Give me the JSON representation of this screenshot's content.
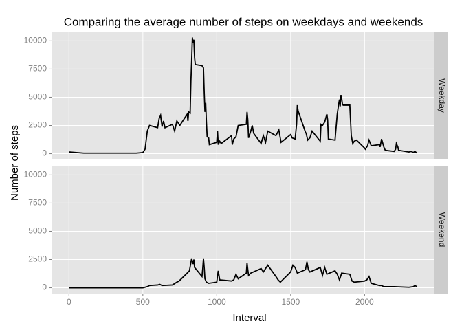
{
  "chart_data": {
    "type": "line",
    "facets": true,
    "title": "Comparing the average number of steps on weekdays and weekends",
    "xlabel": "Interval",
    "ylabel": "Number of steps",
    "xlim": [
      -117.75,
      2472.75
    ],
    "xticks": [
      0,
      500,
      1000,
      1500,
      2000
    ],
    "ylim": [
      -515,
      10815
    ],
    "yticks": [
      0,
      2500,
      5000,
      7500,
      10000
    ],
    "grid": true,
    "series": [
      {
        "name": "Weekday",
        "color": "#000000",
        "x": [
          0,
          100,
          200,
          300,
          400,
          455,
          500,
          515,
          530,
          545,
          600,
          610,
          620,
          630,
          640,
          650,
          700,
          715,
          730,
          750,
          800,
          805,
          810,
          820,
          825,
          830,
          835,
          840,
          845,
          850,
          855,
          900,
          910,
          915,
          920,
          925,
          930,
          935,
          945,
          950,
          1000,
          1005,
          1010,
          1020,
          1030,
          1100,
          1105,
          1115,
          1130,
          1145,
          1200,
          1205,
          1210,
          1215,
          1230,
          1240,
          1250,
          1300,
          1315,
          1330,
          1345,
          1400,
          1420,
          1435,
          1500,
          1510,
          1530,
          1540,
          1545,
          1550,
          1600,
          1605,
          1615,
          1630,
          1645,
          1700,
          1705,
          1715,
          1730,
          1745,
          1750,
          1755,
          1800,
          1815,
          1825,
          1830,
          1835,
          1840,
          1845,
          1850,
          1855,
          1900,
          1910,
          1920,
          1930,
          1945,
          2000,
          2005,
          2020,
          2030,
          2045,
          2100,
          2105,
          2115,
          2130,
          2140,
          2200,
          2210,
          2215,
          2225,
          2230,
          2300,
          2315,
          2330,
          2340,
          2355
        ],
        "values": [
          150,
          50,
          50,
          50,
          50,
          50,
          100,
          400,
          2000,
          2500,
          2300,
          3100,
          3400,
          2400,
          2900,
          2300,
          2600,
          2000,
          2900,
          2500,
          3500,
          2900,
          3700,
          3600,
          6400,
          8200,
          10300,
          9800,
          10100,
          8500,
          7900,
          7800,
          7600,
          5500,
          3700,
          4500,
          2800,
          1500,
          1400,
          800,
          1000,
          2000,
          800,
          1100,
          900,
          1600,
          800,
          1300,
          1500,
          2500,
          2600,
          3700,
          3000,
          1400,
          2000,
          2500,
          1800,
          900,
          1600,
          1000,
          2000,
          1600,
          2100,
          1000,
          1700,
          1400,
          1300,
          2600,
          4300,
          3800,
          1900,
          1800,
          1200,
          1400,
          2000,
          1100,
          2600,
          2500,
          2800,
          3500,
          3000,
          1300,
          1200,
          3500,
          4400,
          4800,
          4200,
          5200,
          4900,
          4400,
          4300,
          4300,
          1600,
          900,
          1100,
          1200,
          500,
          400,
          700,
          1200,
          700,
          800,
          600,
          1300,
          600,
          300,
          200,
          400,
          900,
          600,
          300,
          150,
          200,
          100,
          200,
          50
        ]
      },
      {
        "name": "Weekend",
        "color": "#000000",
        "x": [
          0,
          100,
          200,
          300,
          400,
          500,
          530,
          545,
          600,
          615,
          630,
          700,
          730,
          745,
          800,
          815,
          830,
          840,
          845,
          850,
          900,
          905,
          910,
          915,
          920,
          930,
          945,
          1000,
          1010,
          1020,
          1100,
          1115,
          1130,
          1145,
          1200,
          1205,
          1210,
          1215,
          1230,
          1300,
          1315,
          1345,
          1400,
          1415,
          1430,
          1500,
          1515,
          1530,
          1545,
          1600,
          1610,
          1620,
          1630,
          1700,
          1715,
          1730,
          1745,
          1800,
          1815,
          1830,
          1845,
          1900,
          1915,
          1930,
          2000,
          2015,
          2030,
          2045,
          2100,
          2115,
          2130,
          2200,
          2300,
          2330,
          2340,
          2355
        ],
        "values": [
          0,
          0,
          0,
          0,
          0,
          0,
          100,
          200,
          250,
          300,
          200,
          250,
          500,
          600,
          1300,
          1500,
          2600,
          2100,
          2500,
          1800,
          1000,
          1700,
          2600,
          1800,
          800,
          500,
          400,
          500,
          1500,
          700,
          600,
          700,
          1200,
          800,
          1300,
          2200,
          1600,
          1100,
          1300,
          1700,
          1400,
          2000,
          1000,
          700,
          500,
          1400,
          2000,
          1800,
          1300,
          1600,
          2300,
          1600,
          1400,
          1800,
          1100,
          1800,
          1200,
          1500,
          1200,
          700,
          1300,
          1200,
          600,
          500,
          600,
          700,
          1000,
          400,
          200,
          200,
          100,
          100,
          50,
          100,
          200,
          100
        ]
      }
    ]
  }
}
